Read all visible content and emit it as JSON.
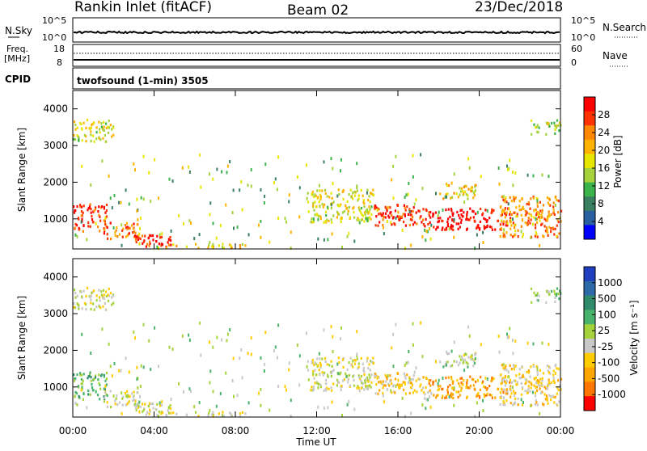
{
  "header": {
    "station": "Rankin Inlet (fitACF)",
    "beam": "Beam 02",
    "date": "23/Dec/2018"
  },
  "nsky_panel": {
    "left_label": "N.Sky",
    "left_ticks": [
      "10^5",
      "10^0"
    ],
    "right_ticks": [
      "10^5",
      "10^0"
    ],
    "right_label": "N.Search"
  },
  "freq_panel": {
    "left_label_1": "Freq.",
    "left_label_2": "[MHz]",
    "left_ticks": [
      "18",
      "8"
    ],
    "right_ticks": [
      "60",
      "0"
    ],
    "right_label": "Nave"
  },
  "cpid_panel": {
    "left_label": "CPID",
    "program": "twofsound (1-min) 3505"
  },
  "power_panel": {
    "ylabel": "Slant Range [km]",
    "yticks": [
      "4000",
      "3000",
      "2000",
      "1000"
    ],
    "colorbar_label": "Power [dB]",
    "colorbar_ticks": [
      "28",
      "24",
      "20",
      "16",
      "12",
      "8",
      "4"
    ],
    "colorbar_colors": [
      "#ff0000",
      "#ff3300",
      "#ff8800",
      "#ffb300",
      "#e6e600",
      "#a6d23c",
      "#3cb44b",
      "#3a8060",
      "#2a5fa0",
      "#0000ff"
    ]
  },
  "velocity_panel": {
    "ylabel": "Slant Range [km]",
    "yticks": [
      "4000",
      "3000",
      "2000",
      "1000"
    ],
    "colorbar_label": "Velocity [m s⁻¹]",
    "colorbar_ticks": [
      "1000",
      "500",
      "100",
      "25",
      "-25",
      "-100",
      "-500",
      "-1000"
    ],
    "colorbar_colors": [
      "#1f3fbf",
      "#2f6aa8",
      "#2f8b6a",
      "#49b36b",
      "#a6d23c",
      "#c8c8c8",
      "#ffcc00",
      "#ffa500",
      "#ff7700",
      "#ff0000"
    ]
  },
  "time_axis": {
    "xlabel": "Time UT",
    "xticks": [
      "00:00",
      "04:00",
      "08:00",
      "12:00",
      "16:00",
      "20:00",
      "00:00"
    ]
  },
  "chart_data": {
    "type": "heatmap",
    "title": "Rankin Inlet (fitACF) Beam 02 23/Dec/2018",
    "xlabel": "Time UT",
    "ylabel": "Slant Range [km]",
    "xlim_hours": [
      0,
      24
    ],
    "ylim_km": [
      180,
      4500
    ],
    "power_scale_db": [
      0,
      30
    ],
    "velocity_scale_ms": [
      -1200,
      1200
    ],
    "echo_regions": [
      {
        "t0": 0.0,
        "t1": 1.7,
        "r0": 650,
        "r1": 1400,
        "power": 26,
        "velocity": 300
      },
      {
        "t0": 0.0,
        "t1": 2.0,
        "r0": 3100,
        "r1": 3700,
        "power": 16,
        "velocity": -80
      },
      {
        "t0": 1.5,
        "t1": 3.2,
        "r0": 450,
        "r1": 900,
        "power": 24,
        "velocity": -40
      },
      {
        "t0": 3.0,
        "t1": 4.8,
        "r0": 200,
        "r1": 550,
        "power": 28,
        "velocity": -120
      },
      {
        "t0": 4.5,
        "t1": 8.5,
        "r0": 200,
        "r1": 320,
        "power": 18,
        "velocity": -200
      },
      {
        "t0": 11.5,
        "t1": 14.8,
        "r0": 900,
        "r1": 1800,
        "power": 16,
        "velocity": -150
      },
      {
        "t0": 14.8,
        "t1": 17.5,
        "r0": 800,
        "r1": 1400,
        "power": 26,
        "velocity": -400
      },
      {
        "t0": 17.5,
        "t1": 21.5,
        "r0": 700,
        "r1": 1300,
        "power": 29,
        "velocity": -600
      },
      {
        "t0": 18.0,
        "t1": 19.8,
        "r0": 1500,
        "r1": 1950,
        "power": 18,
        "velocity": 0
      },
      {
        "t0": 21.0,
        "t1": 24.0,
        "r0": 500,
        "r1": 1600,
        "power": 22,
        "velocity": -300
      },
      {
        "t0": 22.5,
        "t1": 24.0,
        "r0": 3300,
        "r1": 3700,
        "power": 14,
        "velocity": 150
      }
    ],
    "nsky_level": "10^0",
    "freq_mhz": 10,
    "nave": 22
  }
}
